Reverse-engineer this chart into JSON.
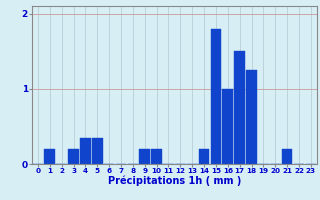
{
  "hours": [
    0,
    1,
    2,
    3,
    4,
    5,
    6,
    7,
    8,
    9,
    10,
    11,
    12,
    13,
    14,
    15,
    16,
    17,
    18,
    19,
    20,
    21,
    22,
    23
  ],
  "values": [
    0.0,
    0.2,
    0.0,
    0.2,
    0.35,
    0.35,
    0.0,
    0.0,
    0.0,
    0.2,
    0.2,
    0.0,
    0.0,
    0.0,
    0.2,
    1.8,
    1.0,
    1.5,
    1.25,
    0.0,
    0.0,
    0.2,
    0.0,
    0.0
  ],
  "bar_color": "#1144cc",
  "bar_edge_color": "#1144cc",
  "background_color": "#d8eef5",
  "grid_color": "#b0c8d0",
  "xlabel": "Précipitations 1h ( mm )",
  "xlabel_color": "#0000cc",
  "ylim": [
    0,
    2.1
  ],
  "yticks": [
    0,
    1,
    2
  ],
  "xlim": [
    -0.5,
    23.5
  ],
  "tick_color": "#0000cc",
  "axis_color": "#888888",
  "tick_fontsize": 5.2,
  "ylabel_fontsize": 6.5,
  "xlabel_fontsize": 7.0
}
